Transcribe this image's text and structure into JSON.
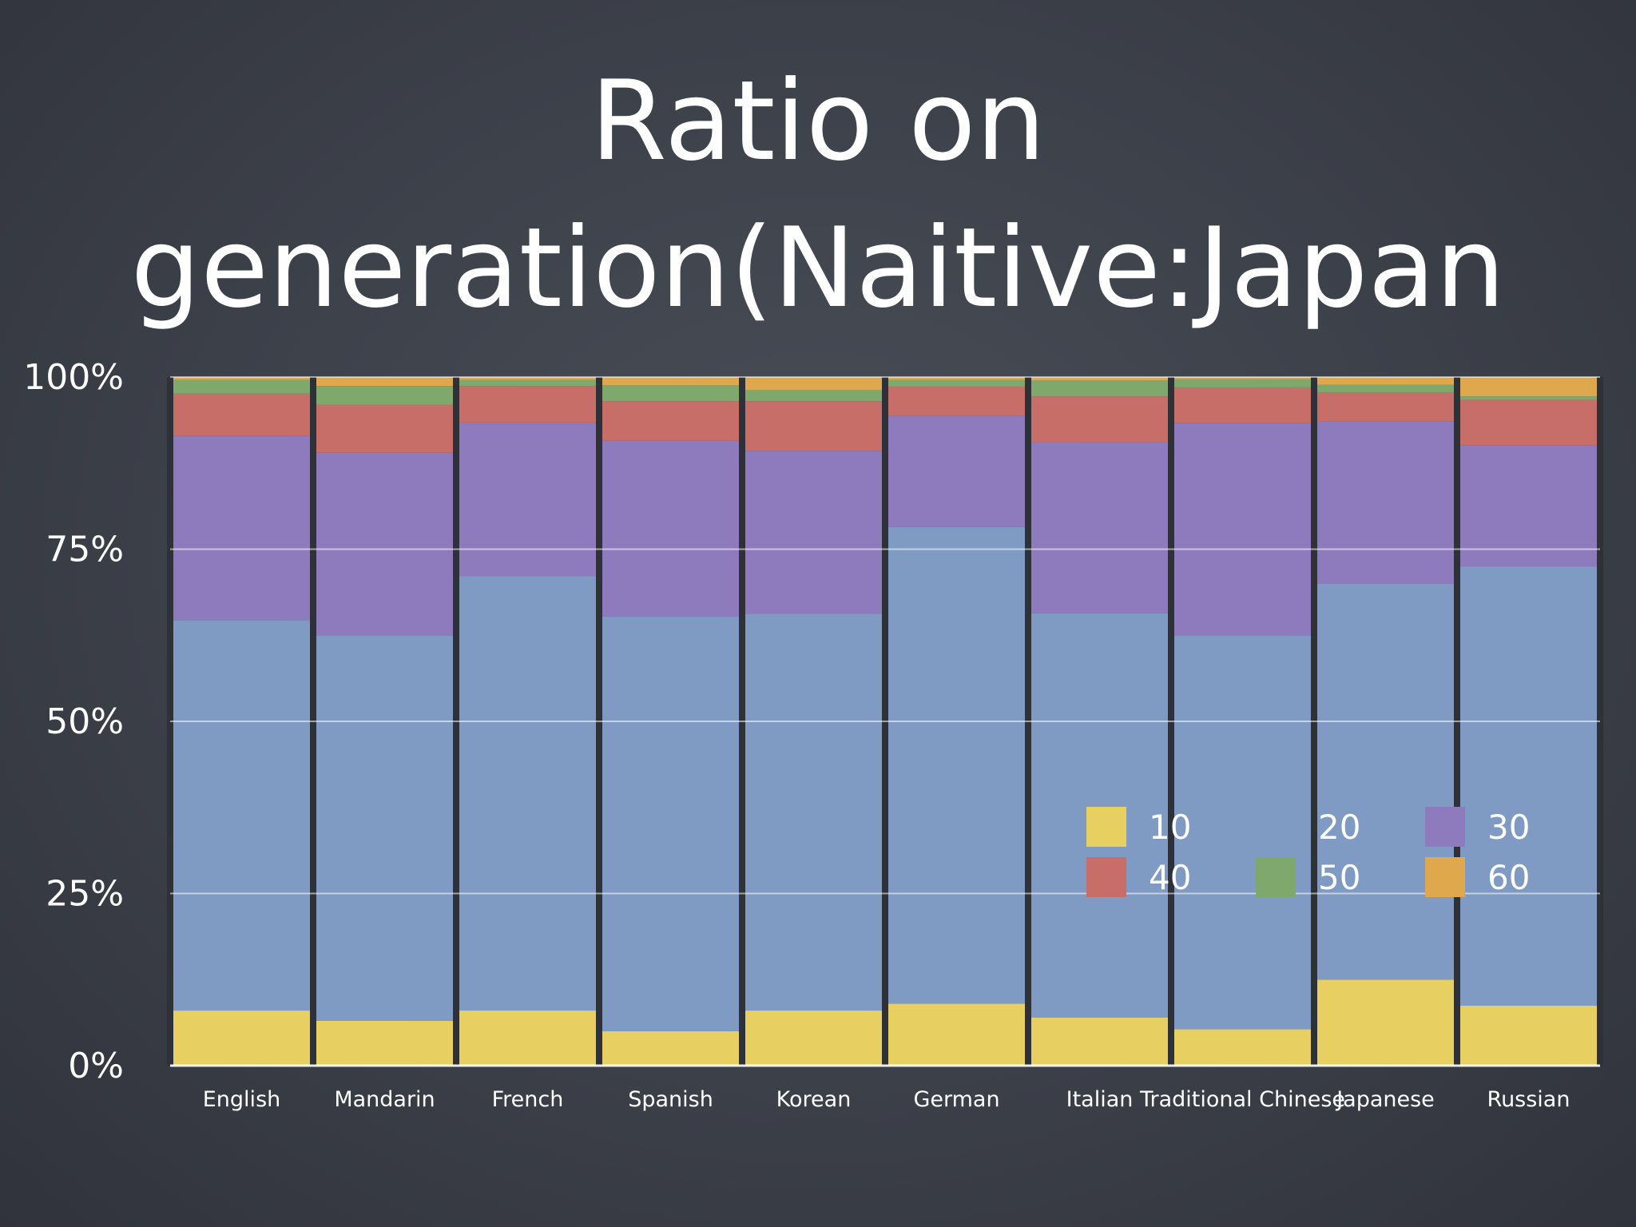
{
  "slide": {
    "title": "Ratio on generation(Naitive:Japan"
  },
  "chart_data": {
    "type": "bar",
    "stacked": "percent",
    "title": "Ratio on generation(Naitive:Japan",
    "xlabel": "",
    "ylabel": "",
    "ylim": [
      0,
      100
    ],
    "y_ticks": [
      "0%",
      "25%",
      "50%",
      "75%",
      "100%"
    ],
    "grid": true,
    "legend_position": "bottom-right inside plot",
    "categories": [
      "English",
      "Mandarin",
      "French",
      "Spanish",
      "Korean",
      "German",
      "Italian",
      "Traditional Chinese",
      "Japanese",
      "Russian"
    ],
    "series": [
      {
        "name": "10",
        "color": "#e8cf62",
        "values": [
          8,
          6.5,
          8,
          5,
          8,
          9,
          7,
          5.3,
          12.5,
          8.7
        ]
      },
      {
        "name": "20",
        "color": "#7f9bc3",
        "values": [
          56.7,
          56,
          63.1,
          60.2,
          57.6,
          69.2,
          58.7,
          57.2,
          57.5,
          63.8
        ]
      },
      {
        "name": "30",
        "color": "#8d7bbd",
        "values": [
          26.8,
          26.5,
          22.3,
          25.6,
          23.7,
          16.2,
          24.8,
          30.8,
          23.6,
          17.6
        ]
      },
      {
        "name": "40",
        "color": "#c86e69",
        "values": [
          6.1,
          7,
          5.3,
          5.7,
          7.2,
          4.2,
          6.7,
          5.2,
          4.2,
          6.6
        ]
      },
      {
        "name": "50",
        "color": "#7ea86c",
        "values": [
          2,
          2.7,
          0.9,
          2.3,
          1.6,
          1,
          2.3,
          1.2,
          1.1,
          0.5
        ]
      },
      {
        "name": "60",
        "color": "#e0a84c",
        "values": [
          0.4,
          1.3,
          0.4,
          1.2,
          1.9,
          0.4,
          0.5,
          0.3,
          1.1,
          2.8
        ]
      }
    ]
  }
}
